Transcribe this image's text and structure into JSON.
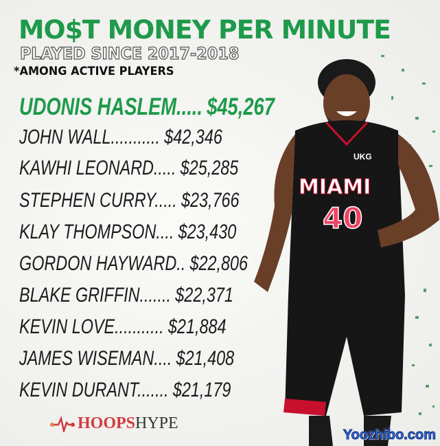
{
  "title": "MO$T MONEY PER MINUTE",
  "subtitle": "PLAYED SINCE 2017-2018",
  "note": "*AMONG ACTIVE PLAYERS",
  "players": [
    {
      "name": "UDONIS HASLEM",
      "dots": ".....",
      "value": "$45,267"
    },
    {
      "name": "JOHN WALL",
      "dots": "...........",
      "value": "$42,346"
    },
    {
      "name": "KAWHI LEONARD",
      "dots": ".....",
      "value": "$25,285"
    },
    {
      "name": "STEPHEN CURRY",
      "dots": ".....",
      "value": "$23,766"
    },
    {
      "name": "KLAY THOMPSON",
      "dots": "....",
      "value": "$23,430"
    },
    {
      "name": "GORDON HAYWARD",
      "dots": "..",
      "value": "$22,806"
    },
    {
      "name": "BLAKE GRIFFIN",
      "dots": ".......",
      "value": "$22,371"
    },
    {
      "name": "KEVIN LOVE",
      "dots": "...........",
      "value": "$21,884"
    },
    {
      "name": "JAMES WISEMAN",
      "dots": "....",
      "value": "$21,408"
    },
    {
      "name": "KEVIN DURANT",
      "dots": ".......",
      "value": "$21,179"
    }
  ],
  "jersey": {
    "team": "MIAMI",
    "number": "40",
    "sponsor": "UKG"
  },
  "logo": {
    "part1": "HOOPS",
    "part2": "HYPE"
  },
  "watermark": "Yoozhibo.com",
  "colors": {
    "accent": "#1e9a4a",
    "logo_red": "#d43a3f",
    "jersey": "#161616",
    "jersey_trim": "#c8102e"
  }
}
